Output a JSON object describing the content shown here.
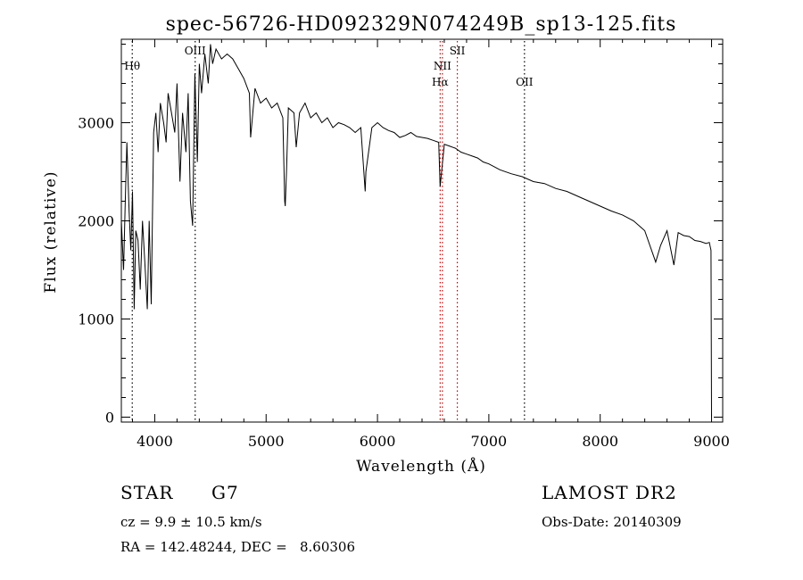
{
  "chart_data": {
    "type": "line",
    "title": "spec-56726-HD092329N074249B_sp13-125.fits",
    "xlabel": "Wavelength (Å)",
    "ylabel": "Flux (relative)",
    "xlim": [
      3700,
      9100
    ],
    "ylim": [
      -50,
      3850
    ],
    "xticks": [
      4000,
      5000,
      6000,
      7000,
      8000,
      9000
    ],
    "xtick_labels": [
      "4000",
      "5000",
      "6000",
      "7000",
      "8000",
      "9000"
    ],
    "yticks": [
      0,
      1000,
      2000,
      3000
    ],
    "ytick_labels": [
      "0",
      "1000",
      "2000",
      "3000"
    ],
    "grid": false,
    "series": [
      {
        "x": [
          3700,
          3720,
          3735,
          3750,
          3770,
          3785,
          3800,
          3815,
          3830,
          3850,
          3870,
          3890,
          3910,
          3933,
          3950,
          3968,
          3990,
          4010,
          4030,
          4050,
          4080,
          4102,
          4120,
          4150,
          4180,
          4200,
          4226,
          4250,
          4280,
          4300,
          4320,
          4340,
          4360,
          4383,
          4400,
          4420,
          4450,
          4480,
          4500,
          4520,
          4550,
          4600,
          4650,
          4700,
          4750,
          4800,
          4850,
          4861,
          4900,
          4950,
          5000,
          5050,
          5100,
          5150,
          5167,
          5172,
          5183,
          5200,
          5250,
          5270,
          5300,
          5350,
          5400,
          5450,
          5500,
          5550,
          5600,
          5650,
          5700,
          5750,
          5800,
          5850,
          5890,
          5896,
          5950,
          6000,
          6050,
          6100,
          6150,
          6200,
          6250,
          6300,
          6350,
          6400,
          6450,
          6500,
          6550,
          6563,
          6600,
          6650,
          6700,
          6750,
          6800,
          6850,
          6900,
          6950,
          7000,
          7100,
          7200,
          7300,
          7400,
          7500,
          7600,
          7700,
          7800,
          7900,
          8000,
          8100,
          8200,
          8300,
          8400,
          8498,
          8542,
          8600,
          8662,
          8700,
          8750,
          8800,
          8850,
          8900,
          8950,
          8980,
          8995,
          9000
        ],
        "values": [
          2000,
          1500,
          2200,
          2800,
          2100,
          1700,
          2300,
          1100,
          1900,
          1800,
          1300,
          2000,
          1600,
          1100,
          2000,
          1150,
          2900,
          3100,
          2700,
          3200,
          3000,
          2800,
          3300,
          3100,
          2900,
          3400,
          2400,
          3100,
          2700,
          3300,
          2200,
          1950,
          3500,
          2600,
          3600,
          3300,
          3700,
          3400,
          3800,
          3600,
          3750,
          3650,
          3700,
          3650,
          3550,
          3450,
          3300,
          2850,
          3350,
          3200,
          3250,
          3150,
          3200,
          3050,
          2200,
          2150,
          2500,
          3150,
          3100,
          2750,
          3100,
          3200,
          3050,
          3100,
          3000,
          3050,
          2950,
          3000,
          2980,
          2950,
          2900,
          2950,
          2300,
          2500,
          2950,
          3000,
          2950,
          2920,
          2900,
          2850,
          2870,
          2900,
          2860,
          2850,
          2840,
          2820,
          2800,
          2350,
          2780,
          2760,
          2740,
          2700,
          2680,
          2660,
          2640,
          2600,
          2580,
          2520,
          2480,
          2450,
          2400,
          2380,
          2330,
          2300,
          2250,
          2200,
          2150,
          2100,
          2060,
          2000,
          1900,
          1580,
          1750,
          1900,
          1550,
          1880,
          1850,
          1840,
          1800,
          1790,
          1770,
          1780,
          1700,
          0
        ]
      }
    ],
    "line_markers": [
      {
        "label": "Hθ",
        "x": 3798,
        "label_row": 1
      },
      {
        "label": "OIII",
        "x": 4363,
        "label_row": 0
      },
      {
        "label": "NII",
        "x": 6583,
        "label_row": 1
      },
      {
        "label": "Hα",
        "x": 6563,
        "label_row": 2
      },
      {
        "label": "OII",
        "x": 7320,
        "label_row": 2
      },
      {
        "label": "SII",
        "x": 6717,
        "label_row": 0
      }
    ]
  },
  "footer": {
    "object_class": "STAR",
    "subclass": "G7",
    "redshift": "cz = 9.9 ± 10.5 km/s",
    "coords": "RA = 142.48244, DEC =   8.60306",
    "survey": "LAMOST DR2",
    "obs_date": "Obs-Date: 20140309"
  }
}
